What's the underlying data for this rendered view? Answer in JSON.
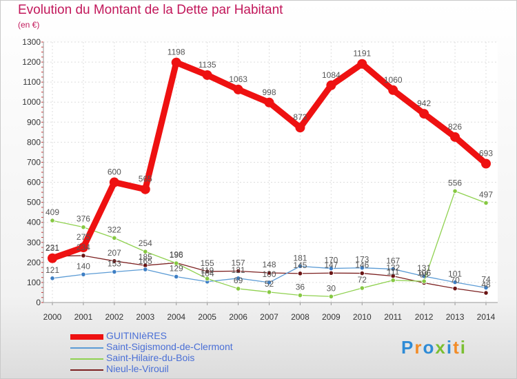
{
  "title": "Evolution du Montant de la Dette par Habitant",
  "unit": "(en €)",
  "logo": {
    "text": "Proxiti",
    "colors": [
      "#2e8bd6",
      "#f28c28",
      "#2e8bd6",
      "#7bbf32",
      "#2e8bd6",
      "#f28c28",
      "#7bbf32"
    ]
  },
  "chart_data": {
    "type": "line",
    "title": "Evolution du Montant de la Dette par Habitant",
    "subtitle": "(en €)",
    "xlabel": "",
    "ylabel": "",
    "x": [
      "2000",
      "2001",
      "2002",
      "2003",
      "2004",
      "2005",
      "2006",
      "2007",
      "2008",
      "2009",
      "2010",
      "2011",
      "2012",
      "2013",
      "2014"
    ],
    "ylim": [
      0,
      1300
    ],
    "yticks": [
      0,
      100,
      200,
      300,
      400,
      500,
      600,
      700,
      800,
      900,
      1000,
      1100,
      1200,
      1300
    ],
    "grid": true,
    "legend": "bottom-left",
    "series": [
      {
        "name": "GUITINIèRES",
        "color": "#ee1111",
        "values": [
          221,
          275,
          600,
          565,
          1198,
          1135,
          1063,
          998,
          873,
          1084,
          1191,
          1060,
          942,
          826,
          693
        ],
        "labels": [
          "221",
          "275",
          "600",
          "565",
          "1198",
          "1135",
          "1063",
          "998",
          "873",
          "1084",
          "1191",
          "1060",
          "942",
          "826",
          "693"
        ]
      },
      {
        "name": "Saint-Sigismond-de-Clermont",
        "color": "#5b9bd5",
        "values": [
          121,
          140,
          153,
          165,
          129,
          104,
          121,
          100,
          181,
          170,
          173,
          167,
          131,
          101,
          74
        ],
        "labels": [
          "121",
          "140",
          "153",
          "165",
          "129",
          "104",
          "121",
          "100",
          "181",
          "170",
          "173",
          "167",
          "131",
          "101",
          "74"
        ]
      },
      {
        "name": "Saint-Hilaire-du-Bois",
        "color": "#8fd14f",
        "values": [
          409,
          376,
          322,
          254,
          196,
          119,
          69,
          52,
          36,
          30,
          72,
          111,
          106,
          556,
          497
        ],
        "labels": [
          "409",
          "376",
          "322",
          "254",
          "196",
          "119",
          "69",
          "52",
          "36",
          "30",
          "72",
          "111",
          "106",
          "556",
          "497"
        ]
      },
      {
        "name": "Nieul-le-Virouil",
        "color": "#7b1f1f",
        "values": [
          231,
          234,
          207,
          185,
          198,
          155,
          157,
          148,
          145,
          147,
          146,
          132,
          98,
          70,
          48
        ],
        "labels": [
          "231",
          "234",
          "207",
          "185",
          "198",
          "155",
          "157",
          "148",
          "145",
          "147",
          "146",
          "132",
          "98",
          "70",
          "48"
        ]
      }
    ]
  }
}
